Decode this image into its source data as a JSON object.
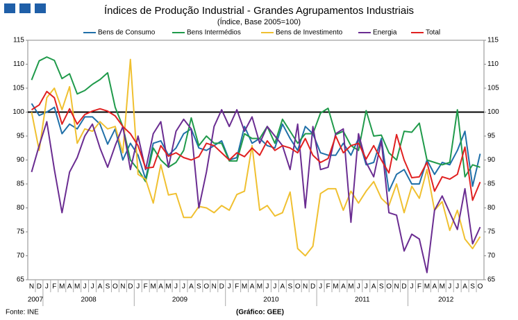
{
  "chart_data": {
    "type": "line",
    "title": "Índices de Produção Industrial - Grandes Agrupamentos Industriais",
    "subtitle": "(Índice,  Base 2005=100)",
    "source": "Fonte: INE",
    "credit": "(Gráfico: GEE)",
    "categories": [
      "N",
      "D",
      "J",
      "F",
      "M",
      "A",
      "M",
      "J",
      "J",
      "A",
      "S",
      "O",
      "N",
      "D",
      "J",
      "F",
      "M",
      "A",
      "M",
      "J",
      "J",
      "A",
      "S",
      "O",
      "N",
      "D",
      "J",
      "F",
      "M",
      "A",
      "M",
      "J",
      "J",
      "A",
      "S",
      "O",
      "N",
      "D",
      "J",
      "F",
      "M",
      "A",
      "M",
      "J",
      "J",
      "A",
      "S",
      "O",
      "N",
      "D",
      "J",
      "F",
      "M",
      "A",
      "M",
      "J",
      "J",
      "A",
      "S",
      "O"
    ],
    "years": [
      "2007",
      "2008",
      "2009",
      "2010",
      "2011",
      "2012"
    ],
    "ylim": [
      65,
      115
    ],
    "yticks": [
      65,
      70,
      75,
      80,
      85,
      90,
      95,
      100,
      105,
      110,
      115
    ],
    "hline": 100,
    "series": [
      {
        "name": "Bens de Consumo",
        "color": "#1f6fa8",
        "values": [
          101.8,
          99.3,
          100,
          101,
          95.5,
          97.5,
          96.5,
          99,
          99,
          97.5,
          93.3,
          96.5,
          90,
          93.5,
          91,
          86,
          93.5,
          94,
          91,
          92.5,
          95.5,
          96.5,
          92.5,
          92,
          93,
          94,
          90,
          90.5,
          97,
          93.5,
          94.5,
          93,
          92.5,
          97.5,
          94.5,
          92,
          97,
          95.5,
          91.5,
          91,
          91,
          93.5,
          91,
          94.5,
          89,
          89.5,
          94.5,
          83.5,
          87,
          88,
          85,
          85,
          90,
          87,
          89.5,
          89,
          92,
          96,
          84.5,
          91.3
        ]
      },
      {
        "name": "Bens Intermédios",
        "color": "#1f9a4a",
        "values": [
          106.7,
          110.7,
          111.5,
          110.8,
          107,
          108,
          103.8,
          104.5,
          105.8,
          106.8,
          108.2,
          101,
          97,
          90,
          88,
          85.5,
          92.5,
          90,
          88.5,
          89.5,
          92,
          98.8,
          93,
          95,
          93.5,
          93.5,
          89.8,
          89.8,
          95.5,
          94.5,
          94.5,
          97,
          93.5,
          98.5,
          96,
          93.5,
          95.5,
          95.5,
          99.8,
          100.8,
          95.3,
          96,
          93,
          92,
          100.3,
          95,
          95.2,
          91.5,
          90,
          96,
          95.8,
          97.7,
          90,
          89.5,
          89,
          89.5,
          100.5,
          86.5,
          89,
          88.5
        ]
      },
      {
        "name": "Bens de Investimento",
        "color": "#f0c030",
        "values": [
          100,
          92,
          103,
          105,
          100.5,
          105.3,
          93.5,
          96.5,
          96,
          98,
          96.5,
          97,
          91.5,
          111,
          87,
          86,
          81,
          89,
          82.7,
          83,
          78,
          78,
          80.3,
          80,
          79,
          80.5,
          79.5,
          82.8,
          83.5,
          93,
          79.5,
          80.5,
          78.3,
          79,
          83.3,
          71.5,
          70,
          72,
          83,
          84,
          84,
          79.5,
          83.5,
          81,
          83.5,
          85.5,
          82,
          80.5,
          85,
          79,
          84.5,
          82,
          88,
          79.5,
          81.3,
          75.3,
          79.5,
          73.5,
          71.5,
          74
        ]
      },
      {
        "name": "Energia",
        "color": "#6a2c91",
        "values": [
          87.5,
          93,
          98,
          88,
          79,
          87.5,
          90.5,
          95,
          97.5,
          92.5,
          88.5,
          93,
          97,
          88,
          95,
          88,
          95.5,
          98,
          88.5,
          96,
          98.5,
          96.5,
          80,
          87.5,
          97,
          100.5,
          97,
          100.5,
          96,
          99,
          93.5,
          97,
          95,
          93,
          88,
          97.5,
          80,
          97,
          88,
          88.5,
          95.5,
          96.5,
          77,
          95.5,
          89.5,
          86.5,
          94,
          79,
          78.5,
          71,
          74.5,
          73.5,
          66.5,
          79.5,
          82.5,
          79,
          75.5,
          84,
          72.5,
          76
        ]
      },
      {
        "name": "Total",
        "color": "#e02020",
        "values": [
          100.5,
          101.5,
          104.3,
          103,
          97.5,
          100.7,
          97.5,
          99.5,
          100.2,
          100.7,
          100.2,
          99.2,
          97,
          95.5,
          93,
          88.3,
          88.5,
          93,
          90.8,
          91.5,
          90.5,
          90,
          90.7,
          93.5,
          93,
          91.5,
          90,
          91.5,
          90.7,
          92.5,
          91,
          94,
          92,
          93,
          92.5,
          91.5,
          94.5,
          91,
          89.5,
          90.3,
          95,
          91.5,
          93,
          93.5,
          90.2,
          93,
          90,
          87.3,
          95.3,
          90,
          86.3,
          86.5,
          89.5,
          83.5,
          86.5,
          86,
          87,
          92.7,
          81.6,
          85.4
        ]
      }
    ]
  }
}
